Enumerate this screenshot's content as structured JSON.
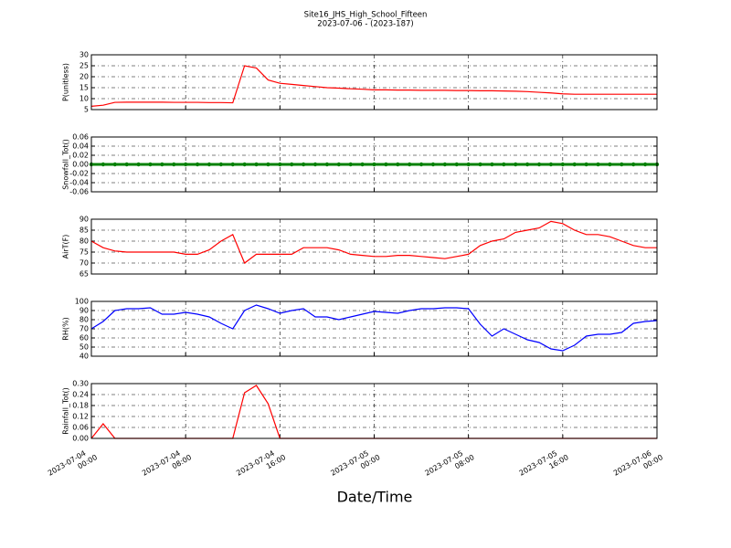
{
  "title": "Site16_JHS_High_School_Fifteen",
  "subtitle": "2023-07-06 - (2023-187)",
  "xlabel": "Date/Time",
  "xlim": [
    "2023-07-04 00:00",
    "2023-07-06 00:00"
  ],
  "xticks": [
    "2023-07-04 00:00",
    "2023-07-04 08:00",
    "2023-07-04 16:00",
    "2023-07-05 00:00",
    "2023-07-05 08:00",
    "2023-07-05 16:00",
    "2023-07-06 00:00"
  ],
  "x": [
    "2023-07-04 00:00",
    "2023-07-04 01:00",
    "2023-07-04 02:00",
    "2023-07-04 03:00",
    "2023-07-04 04:00",
    "2023-07-04 05:00",
    "2023-07-04 06:00",
    "2023-07-04 07:00",
    "2023-07-04 08:00",
    "2023-07-04 09:00",
    "2023-07-04 10:00",
    "2023-07-04 11:00",
    "2023-07-04 12:00",
    "2023-07-04 13:00",
    "2023-07-04 14:00",
    "2023-07-04 15:00",
    "2023-07-04 16:00",
    "2023-07-04 17:00",
    "2023-07-04 18:00",
    "2023-07-04 19:00",
    "2023-07-04 20:00",
    "2023-07-04 21:00",
    "2023-07-04 22:00",
    "2023-07-04 23:00",
    "2023-07-05 00:00",
    "2023-07-05 01:00",
    "2023-07-05 02:00",
    "2023-07-05 03:00",
    "2023-07-05 04:00",
    "2023-07-05 05:00",
    "2023-07-05 06:00",
    "2023-07-05 07:00",
    "2023-07-05 08:00",
    "2023-07-05 09:00",
    "2023-07-05 10:00",
    "2023-07-05 11:00",
    "2023-07-05 12:00",
    "2023-07-05 13:00",
    "2023-07-05 14:00",
    "2023-07-05 15:00",
    "2023-07-05 16:00",
    "2023-07-05 17:00",
    "2023-07-05 18:00",
    "2023-07-05 19:00",
    "2023-07-05 20:00",
    "2023-07-05 21:00",
    "2023-07-05 22:00",
    "2023-07-05 23:00",
    "2023-07-06 00:00"
  ],
  "chart_data": [
    {
      "type": "line",
      "ylabel": "P(unitless)",
      "ylim": [
        5,
        30
      ],
      "yticks": [
        5,
        10,
        15,
        20,
        25,
        30
      ],
      "grid": true,
      "series": [
        {
          "color": "#ff0000",
          "values": [
            6.5,
            7,
            8.3,
            8.4,
            8.4,
            8.4,
            8.4,
            8.3,
            8.3,
            8.3,
            8.2,
            8.2,
            8.1,
            25,
            24,
            18.5,
            17,
            16.5,
            16,
            15.5,
            15,
            14.8,
            14.5,
            14.3,
            14,
            14,
            13.9,
            13.9,
            13.8,
            13.8,
            13.8,
            13.7,
            13.7,
            13.6,
            13.6,
            13.5,
            13.4,
            13.2,
            12.9,
            12.6,
            12.2,
            12,
            12,
            12,
            12,
            12,
            12,
            12,
            12
          ]
        }
      ]
    },
    {
      "type": "line",
      "ylabel": "Snowfall_Tot()",
      "ylim": [
        -0.06,
        0.06
      ],
      "yticks": [
        -0.06,
        -0.04,
        -0.02,
        {
          "value": 0,
          "label": "0.00"
        },
        0.02,
        0.04,
        0.06
      ],
      "grid": true,
      "markers": true,
      "series": [
        {
          "color": "#008000",
          "values": [
            0,
            0,
            0,
            0,
            0,
            0,
            0,
            0,
            0,
            0,
            0,
            0,
            0,
            0,
            0,
            0,
            0,
            0,
            0,
            0,
            0,
            0,
            0,
            0,
            0,
            0,
            0,
            0,
            0,
            0,
            0,
            0,
            0,
            0,
            0,
            0,
            0,
            0,
            0,
            0,
            0,
            0,
            0,
            0,
            0,
            0,
            0,
            0,
            0
          ]
        }
      ]
    },
    {
      "type": "line",
      "ylabel": "AirT(F)",
      "ylim": [
        65,
        90
      ],
      "yticks": [
        65,
        70,
        75,
        80,
        85,
        90
      ],
      "grid": true,
      "series": [
        {
          "color": "#ff0000",
          "values": [
            80,
            77,
            75.5,
            75,
            75,
            75,
            75,
            75,
            74,
            74,
            76,
            80,
            83,
            70,
            74,
            74,
            74,
            74,
            77,
            77,
            77,
            76,
            74,
            73.5,
            73,
            73,
            73.5,
            73.5,
            73,
            72.5,
            72,
            73,
            74,
            78,
            80,
            81,
            84,
            85,
            86,
            89,
            88,
            85,
            83,
            83,
            82,
            80,
            78,
            77,
            77
          ]
        }
      ]
    },
    {
      "type": "line",
      "ylabel": "RH(%)",
      "ylim": [
        40,
        100
      ],
      "yticks": [
        40,
        50,
        60,
        70,
        80,
        90,
        100
      ],
      "grid": true,
      "series": [
        {
          "color": "#0000ff",
          "values": [
            70,
            78,
            90,
            92,
            92,
            93,
            86,
            86,
            88,
            86,
            83,
            76,
            70,
            90,
            96,
            92,
            87,
            90,
            92,
            83,
            83,
            80,
            83,
            86,
            89,
            88,
            87,
            90,
            92,
            92,
            93,
            93,
            92,
            75,
            62,
            70,
            64,
            58,
            55,
            48,
            46,
            52,
            62,
            64,
            64,
            66,
            76,
            78,
            79
          ]
        }
      ]
    },
    {
      "type": "line",
      "ylabel": "Rainfall_Tot()",
      "ylim": [
        0,
        0.3
      ],
      "yticks": [
        {
          "value": 0,
          "label": "0.00"
        },
        0.06,
        0.12,
        0.18,
        0.24,
        {
          "value": 0.3,
          "label": "0.30"
        }
      ],
      "grid": true,
      "series": [
        {
          "color": "#ff0000",
          "values": [
            0,
            0.08,
            0,
            0,
            0,
            0,
            0,
            0,
            0,
            0,
            0,
            0,
            0,
            0.25,
            0.29,
            0.19,
            0,
            0,
            0,
            0,
            0,
            0,
            0,
            0,
            0,
            0,
            0,
            0,
            0,
            0,
            0,
            0,
            0,
            0,
            0,
            0,
            0,
            0,
            0,
            0,
            0,
            0,
            0,
            0,
            0,
            0,
            0,
            0,
            0
          ]
        }
      ]
    }
  ]
}
